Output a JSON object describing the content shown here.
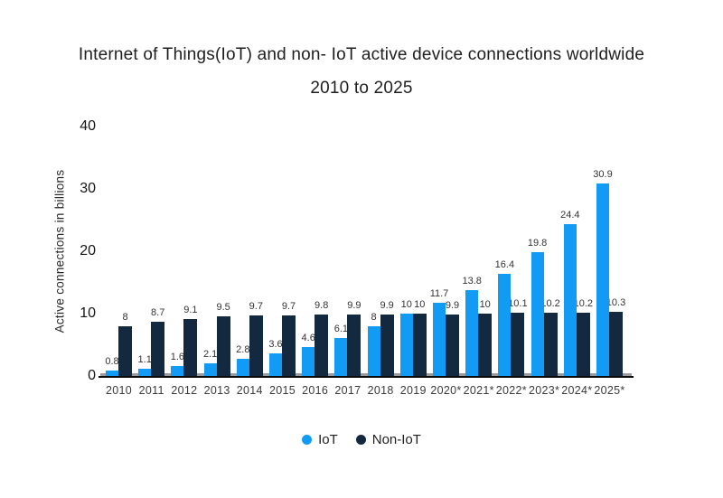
{
  "header": {
    "line1": "Internet of Things(IoT) and non- IoT active device connections worldwide",
    "line2": "2010 to 2025"
  },
  "chart_data": {
    "type": "bar",
    "title": "Internet of Things(IoT) and non- IoT active device connections worldwide 2010 to 2025",
    "categories": [
      "2010",
      "2011",
      "2012",
      "2013",
      "2014",
      "2015",
      "2016",
      "2017",
      "2018",
      "2019",
      "2020*",
      "2021*",
      "2022*",
      "2023*",
      "2024*",
      "2025*"
    ],
    "series": [
      {
        "name": "IoT",
        "color": "#119BF4",
        "values": [
          0.8,
          1.1,
          1.6,
          2.1,
          2.8,
          3.6,
          4.6,
          6.1,
          8,
          10,
          11.7,
          13.8,
          16.4,
          19.8,
          24.4,
          30.9
        ],
        "labels": [
          "0.8",
          "1.1",
          "1.6",
          "2.1",
          "2.8",
          "3.6",
          "4.6",
          "6.1",
          "8",
          "10",
          "11.7",
          "13.8",
          "16.4",
          "19.8",
          "24.4",
          "30.9"
        ]
      },
      {
        "name": "Non-IoT",
        "color": "#13293F",
        "values": [
          8,
          8.7,
          9.1,
          9.5,
          9.7,
          9.7,
          9.8,
          9.9,
          9.9,
          10,
          9.9,
          10,
          10.1,
          10.2,
          10.2,
          10.3
        ],
        "labels": [
          "8",
          "8.7",
          "9.1",
          "9.5",
          "9.7",
          "9.7",
          "9.8",
          "9.9",
          "9.9",
          "10",
          "9.9",
          "10",
          "10.1",
          "10.2",
          "10.2",
          "10.3"
        ]
      }
    ],
    "xlabel": "",
    "ylabel": "Active connections in billions",
    "ylim": [
      0,
      40
    ],
    "yticks": [
      0,
      10,
      20,
      30,
      40
    ],
    "grid": false,
    "legend_position": "bottom",
    "background": "#ffffff",
    "axis_line_color": "#0b0b0b"
  }
}
